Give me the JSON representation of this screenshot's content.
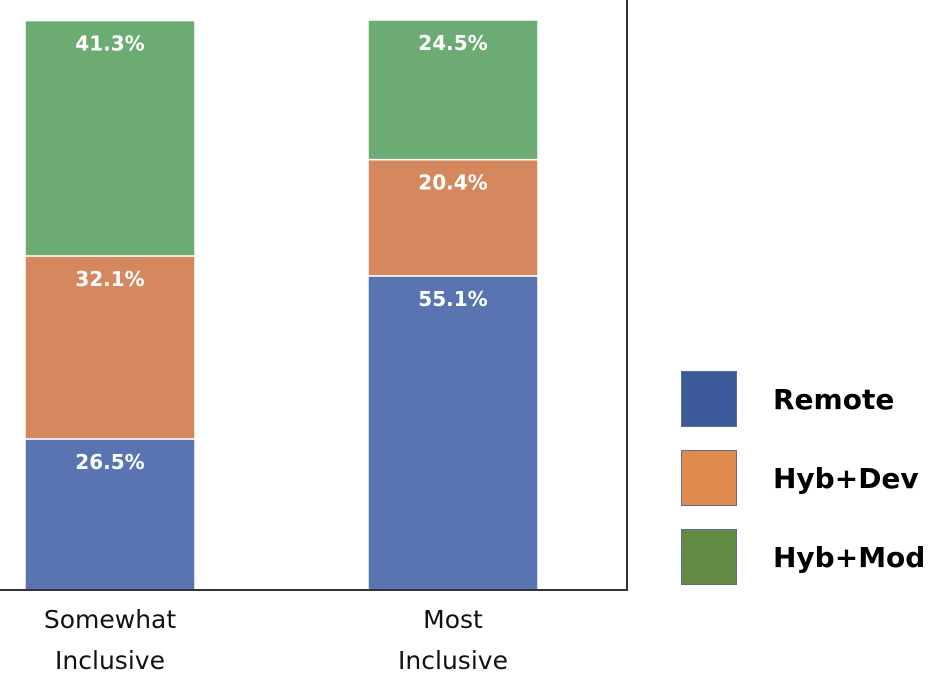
{
  "chart_data": {
    "type": "bar",
    "stacked": true,
    "categories": [
      [
        "Somewhat",
        "Inclusive"
      ],
      [
        "Most",
        "Inclusive"
      ]
    ],
    "series": [
      {
        "name": "Remote",
        "values": [
          26.5,
          55.1
        ],
        "labels": [
          "26.5%",
          "55.1%"
        ],
        "color": "#5a73b1"
      },
      {
        "name": "Hyb+Dev",
        "values": [
          32.1,
          20.4
        ],
        "labels": [
          "32.1%",
          "20.4%"
        ],
        "color": "#d5885d"
      },
      {
        "name": "Hyb+Mod",
        "values": [
          41.3,
          24.5
        ],
        "labels": [
          "41.3%",
          "24.5%"
        ],
        "color": "#6cab73"
      }
    ],
    "ylim": [
      0,
      100
    ],
    "legend": {
      "placement": "right",
      "items": [
        {
          "name": "Remote",
          "color": "#3c5a9a"
        },
        {
          "name": "Hyb+Dev",
          "color": "#e08a4d"
        },
        {
          "name": "Hyb+Mod",
          "color": "#628a43"
        }
      ]
    }
  }
}
